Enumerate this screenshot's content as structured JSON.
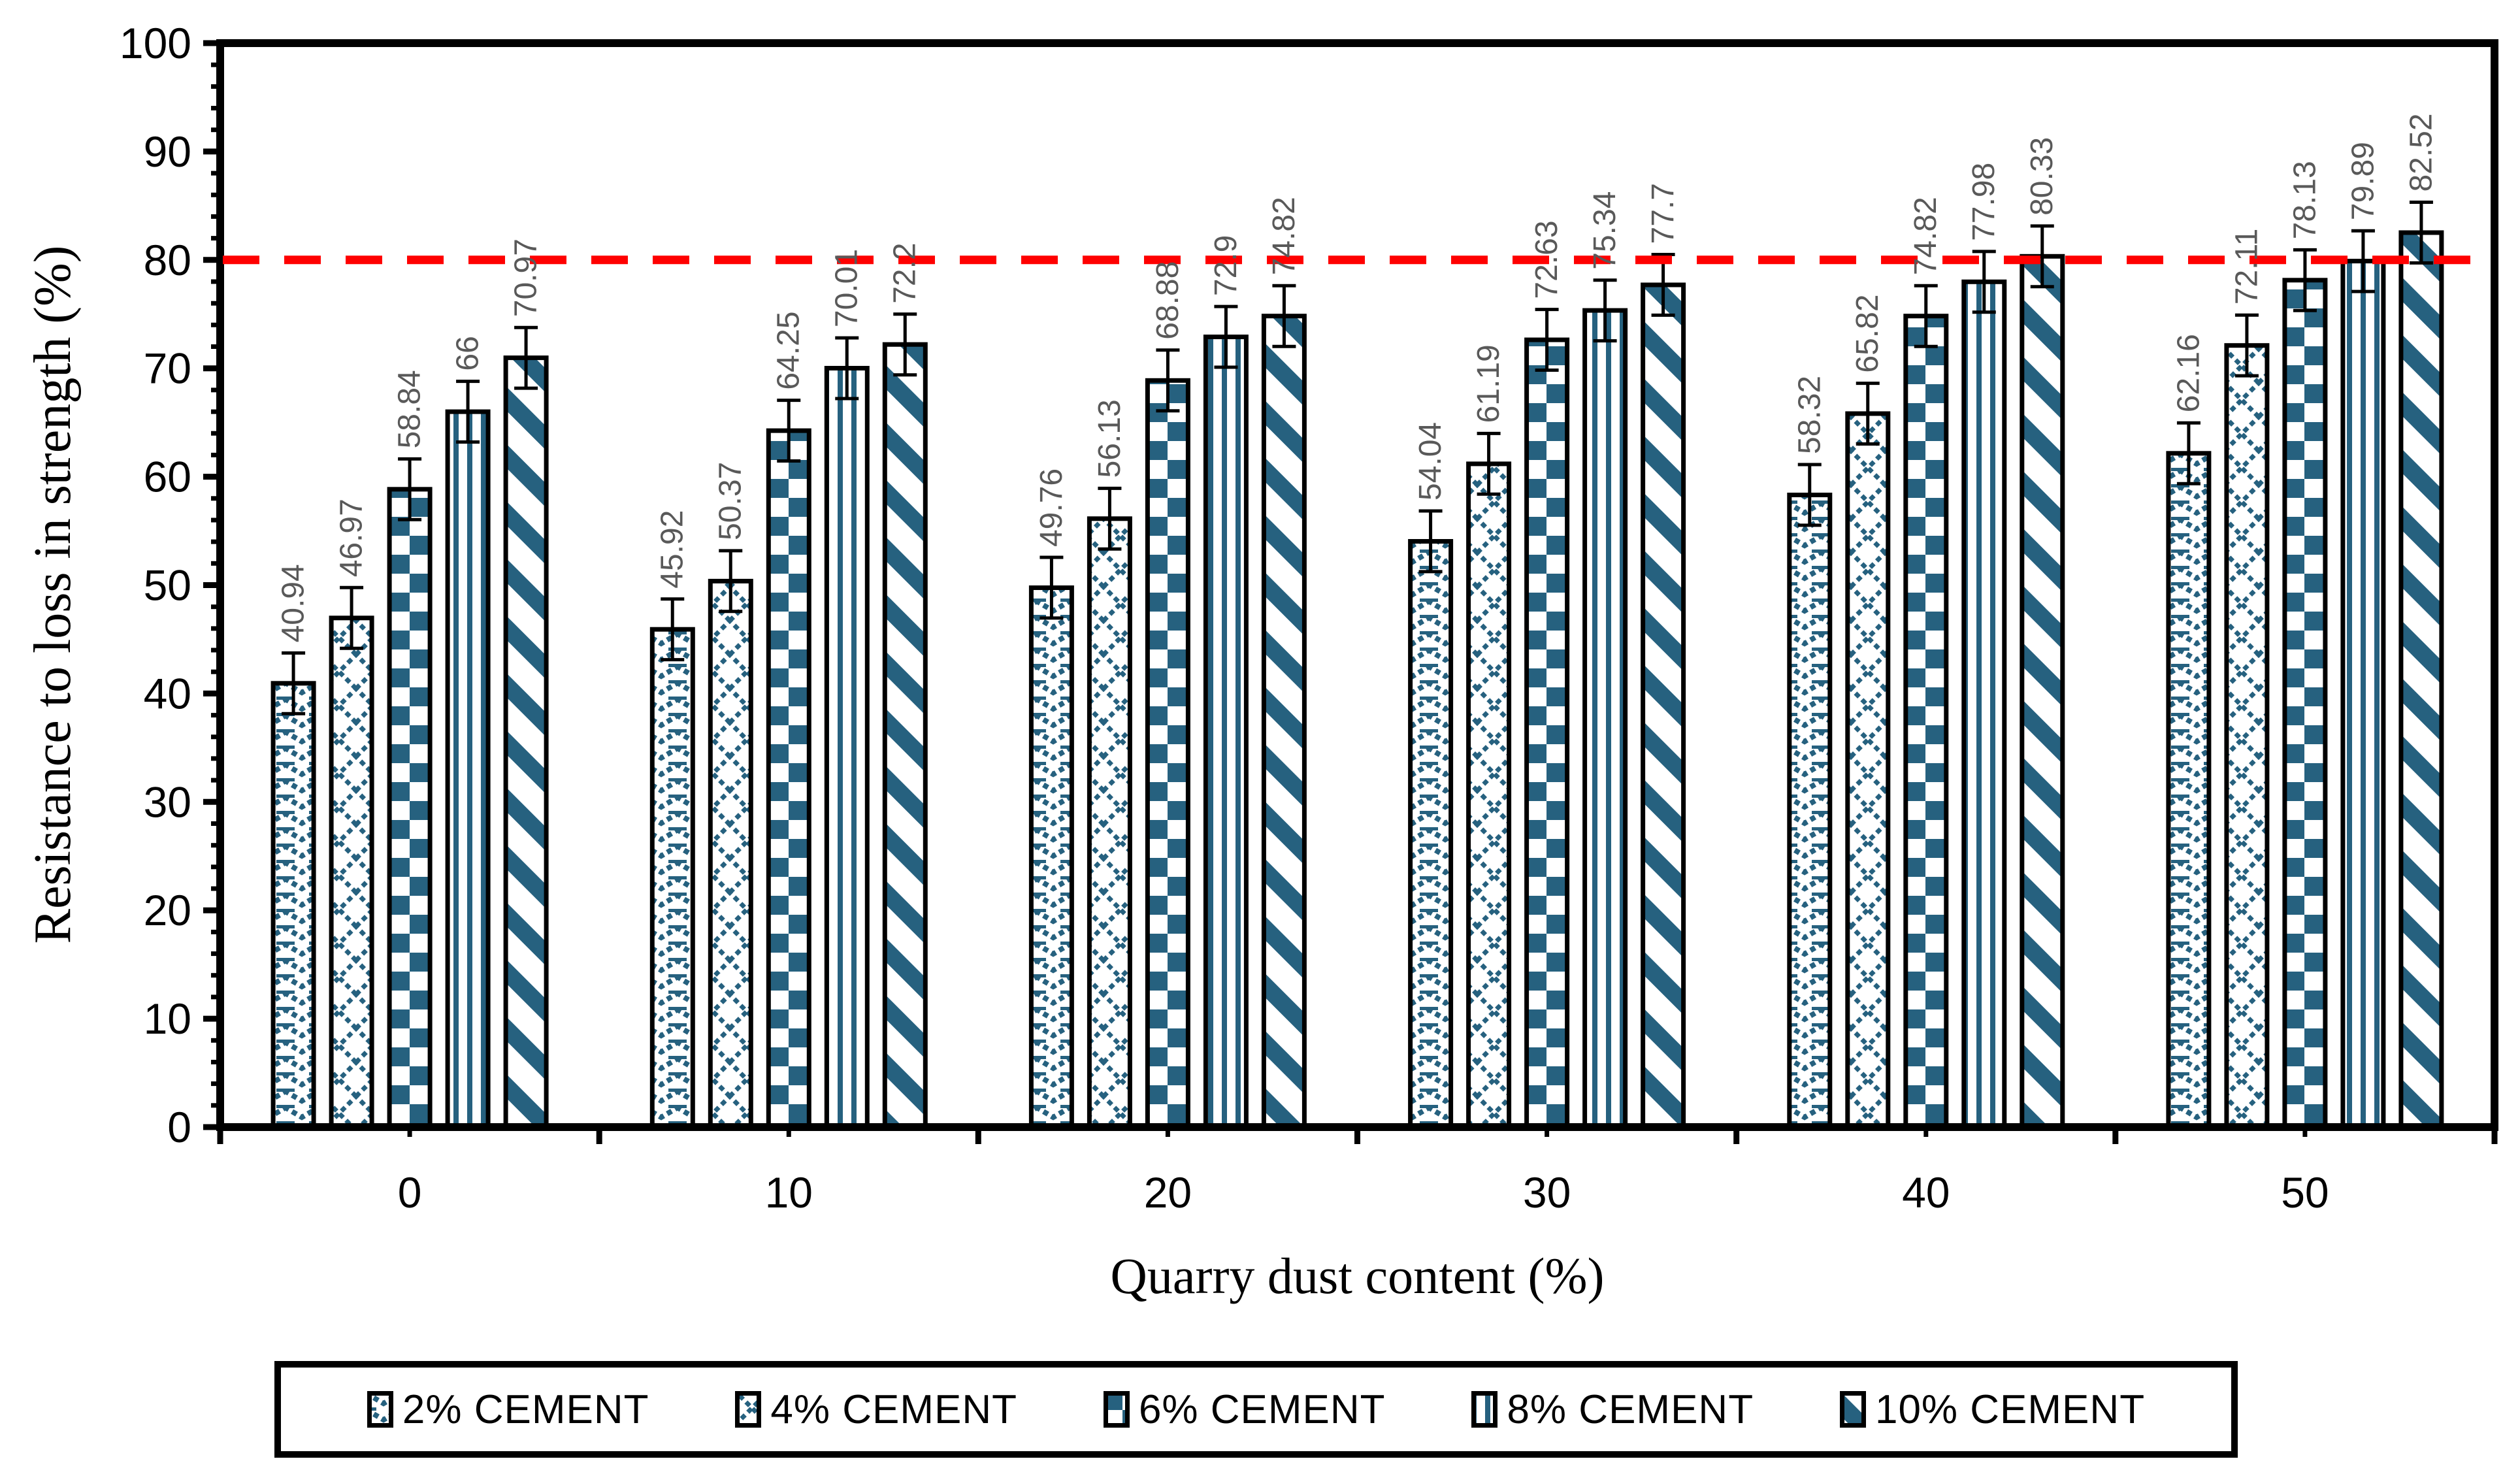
{
  "figure": {
    "background": "#ffffff",
    "y_axis": {
      "title": "Resistance to loss in strength (%)",
      "min": 0,
      "max": 100,
      "major_step": 10,
      "minor_step": 2,
      "tick_labels": [
        "0",
        "10",
        "20",
        "30",
        "40",
        "50",
        "60",
        "70",
        "80",
        "90",
        "100"
      ]
    },
    "x_axis": {
      "title": "Quarry dust content (%)",
      "tick_labels": [
        "0",
        "10",
        "20",
        "30",
        "40",
        "50"
      ]
    },
    "reference_line": {
      "value": 80,
      "color": "#ff0000",
      "style": "dashed"
    },
    "colors": {
      "pattern_blue": "#26617F",
      "bar_border": "#000000",
      "value_label": "#595959",
      "axis": "#000000"
    },
    "legend": {
      "position": "bottom",
      "items": [
        {
          "label": "2% CEMENT",
          "pattern": "chevron"
        },
        {
          "label": "4% CEMENT",
          "pattern": "lattice"
        },
        {
          "label": "6% CEMENT",
          "pattern": "checker"
        },
        {
          "label": "8% CEMENT",
          "pattern": "vstripe"
        },
        {
          "label": "10% CEMENT",
          "pattern": "dstripe"
        }
      ]
    }
  },
  "chart_data": {
    "type": "bar",
    "title": "",
    "xlabel": "Quarry dust content (%)",
    "ylabel": "Resistance to loss in strength (%)",
    "ylim": [
      0,
      100
    ],
    "grid": false,
    "legend_position": "bottom",
    "categories": [
      0,
      10,
      20,
      30,
      40,
      50
    ],
    "series": [
      {
        "name": "2% CEMENT",
        "pattern": "chevron",
        "values": [
          40.94,
          45.92,
          49.76,
          54.04,
          58.32,
          62.16
        ]
      },
      {
        "name": "4% CEMENT",
        "pattern": "lattice",
        "values": [
          46.97,
          50.37,
          56.13,
          61.19,
          65.82,
          72.11
        ]
      },
      {
        "name": "6% CEMENT",
        "pattern": "checker",
        "values": [
          58.84,
          64.25,
          68.88,
          72.63,
          74.82,
          78.13
        ]
      },
      {
        "name": "8% CEMENT",
        "pattern": "vstripe",
        "values": [
          66,
          70.01,
          72.9,
          75.34,
          77.98,
          79.89
        ]
      },
      {
        "name": "10% CEMENT",
        "pattern": "dstripe",
        "values": [
          70.97,
          72.2,
          74.82,
          77.7,
          80.33,
          82.52
        ]
      }
    ],
    "error_bar_margin": 2.8,
    "reference_line": 80,
    "value_labels_rotated": true
  }
}
